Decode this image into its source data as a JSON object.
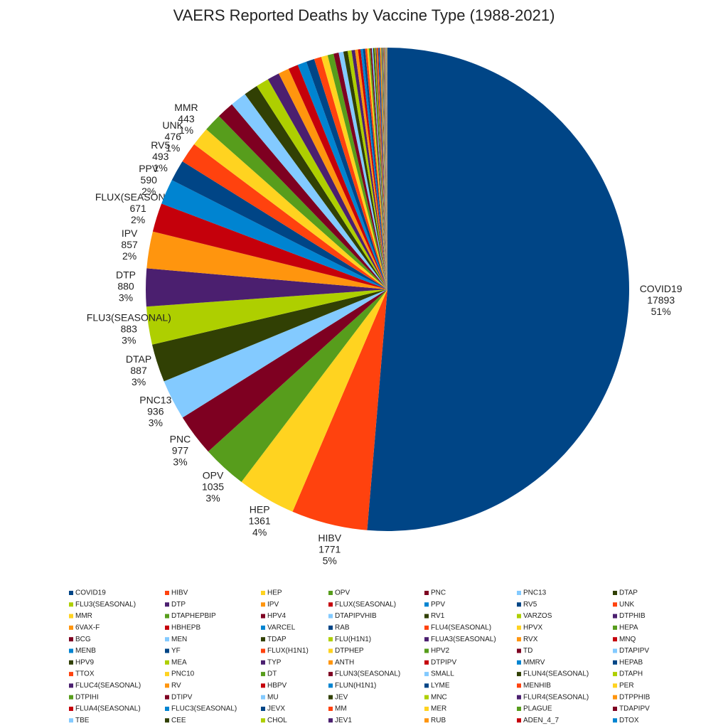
{
  "chart_data": {
    "type": "pie",
    "title": "VAERS Reported Deaths by Vaccine Type (1988-2021)",
    "categories": [
      "COVID19",
      "HIBV",
      "HEP",
      "OPV",
      "PNC",
      "PNC13",
      "DTAP",
      "FLU3(SEASONAL)",
      "DTP",
      "IPV",
      "FLUX(SEASONAL)",
      "PPV",
      "RV5",
      "UNK",
      "MMR",
      "DTAPHEPBIP",
      "HPV4",
      "DTAPIPVHIB",
      "RV1",
      "VARZOS",
      "DTPHIB",
      "6VAX-F",
      "HBHEPB",
      "VARCEL",
      "RAB",
      "FLU4(SEASONAL)",
      "HPVX",
      "HEPA",
      "BCG",
      "MEN",
      "TDAP",
      "FLU(H1N1)",
      "FLUA3(SEASONAL)",
      "RVX",
      "MNQ",
      "MENB",
      "YF",
      "FLUX(H1N1)",
      "DTPHEP",
      "HPV2",
      "TD",
      "DTAPIPV",
      "HPV9",
      "MEA",
      "TYP",
      "ANTH",
      "DTPIPV",
      "MMRV",
      "HEPAB",
      "TTOX",
      "PNC10",
      "DT",
      "FLUN3(SEASONAL)",
      "SMALL",
      "FLUN4(SEASONAL)",
      "DTAPH",
      "FLUC4(SEASONAL)",
      "RV",
      "HBPV",
      "FLUN(H1N1)",
      "LYME",
      "MENHIB",
      "PER",
      "DTPIHI",
      "DTIPV",
      "MU",
      "JEV",
      "MNC",
      "FLUR4(SEASONAL)",
      "DTPPHIB",
      "FLUA4(SEASONAL)",
      "FLUC3(SEASONAL)",
      "JEVX",
      "MM",
      "MER",
      "PLAGUE",
      "TDAPIPV",
      "TBE",
      "CEE",
      "CHOL",
      "JEV1",
      "RUB",
      "ADEN_4_7",
      "DTOX"
    ],
    "values": [
      17893,
      1771,
      1361,
      1035,
      977,
      936,
      887,
      883,
      880,
      857,
      671,
      590,
      493,
      476,
      443,
      420,
      400,
      380,
      330,
      300,
      280,
      250,
      230,
      210,
      190,
      170,
      150,
      140,
      120,
      110,
      100,
      90,
      80,
      70,
      60,
      55,
      50,
      45,
      40,
      36,
      33,
      30,
      28,
      26,
      24,
      22,
      20,
      18,
      16,
      15,
      14,
      13,
      12,
      11,
      10,
      9,
      8,
      8,
      7,
      7,
      6,
      6,
      5,
      5,
      4,
      4,
      4,
      3,
      3,
      3,
      2,
      2,
      2,
      2,
      2,
      1,
      1,
      1,
      1,
      1,
      1,
      1,
      1,
      1
    ],
    "percent_labels": [
      "51%",
      "5%",
      "4%",
      "3%",
      "3%",
      "3%",
      "3%",
      "3%",
      "3%",
      "2%",
      "2%",
      "2%",
      "1%",
      "1%",
      "1%",
      null,
      null,
      null,
      null,
      null,
      null,
      null,
      null,
      null,
      null,
      null,
      null,
      null,
      null,
      null,
      null,
      null,
      null,
      null,
      null,
      null,
      null,
      null,
      null,
      null,
      null,
      null,
      null,
      null,
      null,
      null,
      null,
      null,
      null,
      null,
      null,
      null,
      null,
      null,
      null,
      null,
      null,
      null,
      null,
      null,
      null,
      null,
      null,
      null,
      null,
      null,
      null,
      null,
      null,
      null,
      null,
      null,
      null,
      null,
      null,
      null,
      null,
      null,
      null,
      null,
      null,
      null,
      null,
      null
    ],
    "palette": [
      "#004586",
      "#ff420e",
      "#ffd320",
      "#579d1c",
      "#7e0021",
      "#83caff",
      "#314004",
      "#aecf00",
      "#4b1f6f",
      "#ff950e",
      "#c5000b",
      "#0084d1"
    ],
    "legend": "bottom"
  }
}
